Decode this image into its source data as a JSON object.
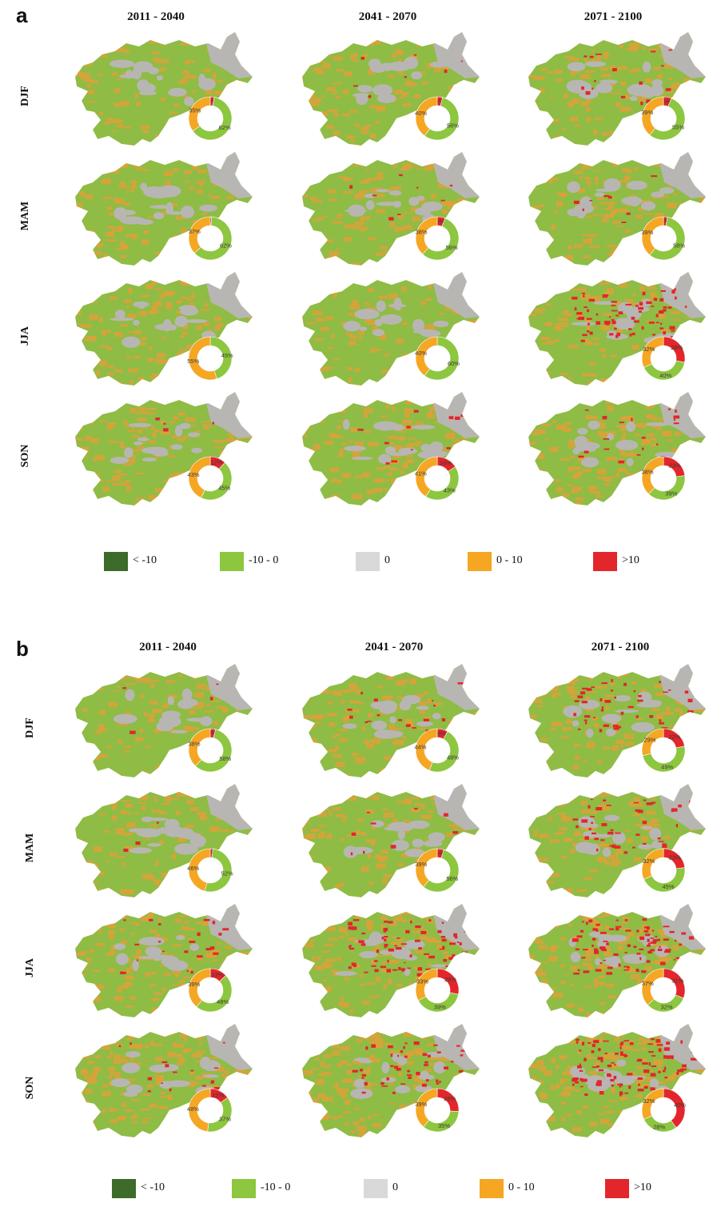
{
  "colors": {
    "lt_minus10": "#3d6b2a",
    "minus10_0": "#8dc63f",
    "zero": "#d9d9d9",
    "zero_10": "#f5a623",
    "gt10": "#e3262b",
    "map_green": "#8fbc45",
    "map_orange": "#d9a23a",
    "map_grey": "#b8b6b3"
  },
  "legend": [
    {
      "label": "< -10",
      "color_key": "lt_minus10"
    },
    {
      "label": "-10 - 0",
      "color_key": "minus10_0"
    },
    {
      "label": "0",
      "color_key": "zero"
    },
    {
      "label": "0 - 10",
      "color_key": "zero_10"
    },
    {
      "label": ">10",
      "color_key": "gt10"
    }
  ],
  "periods": [
    "2011 - 2040",
    "2041 - 2070",
    "2071 - 2100"
  ],
  "seasons": [
    "DJF",
    "MAM",
    "JJA",
    "SON"
  ],
  "panels": [
    {
      "letter": "a",
      "cells": [
        [
          {
            "red": 3,
            "green": 62,
            "orange": 35,
            "red_label": "3%",
            "green_label": "62%",
            "orange_label": "35%",
            "hot": 0.0
          },
          {
            "red": 4,
            "green": 56,
            "orange": 40,
            "red_label": "4%",
            "green_label": "56%",
            "orange_label": "40%",
            "hot": 0.02
          },
          {
            "red": 6,
            "green": 55,
            "orange": 39,
            "red_label": "6%",
            "green_label": "55%",
            "orange_label": "39%",
            "hot": 0.04
          }
        ],
        [
          {
            "red": 1,
            "green": 62,
            "orange": 37,
            "red_label": "1%",
            "green_label": "62%",
            "orange_label": "37%",
            "hot": 0.0
          },
          {
            "red": 6,
            "green": 56,
            "orange": 38,
            "red_label": "6%",
            "green_label": "56%",
            "orange_label": "38%",
            "hot": 0.02
          },
          {
            "red": 3,
            "green": 58,
            "orange": 39,
            "red_label": "3%",
            "green_label": "58%",
            "orange_label": "39%",
            "hot": 0.02
          }
        ],
        [
          {
            "red": 0,
            "green": 45,
            "orange": 55,
            "red_label": "",
            "green_label": "45%",
            "orange_label": "55%",
            "hot": 0.0
          },
          {
            "red": 0,
            "green": 60,
            "orange": 40,
            "red_label": "",
            "green_label": "60%",
            "orange_label": "40%",
            "hot": 0.0
          },
          {
            "red": 28,
            "green": 40,
            "orange": 32,
            "red_label": "28%",
            "green_label": "40%",
            "orange_label": "32%",
            "hot": 0.2
          }
        ],
        [
          {
            "red": 12,
            "green": 45,
            "orange": 43,
            "red_label": "12%",
            "green_label": "45%",
            "orange_label": "43%",
            "hot": 0.01
          },
          {
            "red": 16,
            "green": 43,
            "orange": 41,
            "red_label": "16%",
            "green_label": "43%",
            "orange_label": "41%",
            "hot": 0.03
          },
          {
            "red": 23,
            "green": 39,
            "orange": 38,
            "red_label": "23%",
            "green_label": "39%",
            "orange_label": "38%",
            "hot": 0.05
          }
        ]
      ]
    },
    {
      "letter": "b",
      "cells": [
        [
          {
            "red": 4,
            "green": 58,
            "orange": 38,
            "red_label": "4%",
            "green_label": "58%",
            "orange_label": "38%",
            "hot": 0.01
          },
          {
            "red": 8,
            "green": 48,
            "orange": 44,
            "red_label": "8%",
            "green_label": "48%",
            "orange_label": "44%",
            "hot": 0.04
          },
          {
            "red": 22,
            "green": 49,
            "orange": 29,
            "red_label": "22%",
            "green_label": "49%",
            "orange_label": "29%",
            "hot": 0.12
          }
        ],
        [
          {
            "red": 2,
            "green": 52,
            "orange": 46,
            "red_label": "2%",
            "green_label": "52%",
            "orange_label": "46%",
            "hot": 0.01
          },
          {
            "red": 5,
            "green": 56,
            "orange": 39,
            "red_label": "5%",
            "green_label": "56%",
            "orange_label": "39%",
            "hot": 0.03
          },
          {
            "red": 23,
            "green": 45,
            "orange": 32,
            "red_label": "23%",
            "green_label": "45%",
            "orange_label": "32%",
            "hot": 0.12
          }
        ],
        [
          {
            "red": 13,
            "green": 48,
            "orange": 39,
            "red_label": "13%",
            "green_label": "48%",
            "orange_label": "39%",
            "hot": 0.06
          },
          {
            "red": 28,
            "green": 39,
            "orange": 33,
            "red_label": "28%",
            "green_label": "39%",
            "orange_label": "33%",
            "hot": 0.2
          },
          {
            "red": 31,
            "green": 32,
            "orange": 37,
            "red_label": "31%",
            "green_label": "32%",
            "orange_label": "37%",
            "hot": 0.22
          }
        ],
        [
          {
            "red": 15,
            "green": 37,
            "orange": 48,
            "red_label": "15%",
            "green_label": "37%",
            "orange_label": "48%",
            "hot": 0.04
          },
          {
            "red": 26,
            "green": 35,
            "orange": 39,
            "red_label": "26%",
            "green_label": "35%",
            "orange_label": "39%",
            "hot": 0.12
          },
          {
            "red": 40,
            "green": 28,
            "orange": 32,
            "red_label": "40%",
            "green_label": "28%",
            "orange_label": "32%",
            "hot": 0.25
          }
        ]
      ]
    }
  ]
}
